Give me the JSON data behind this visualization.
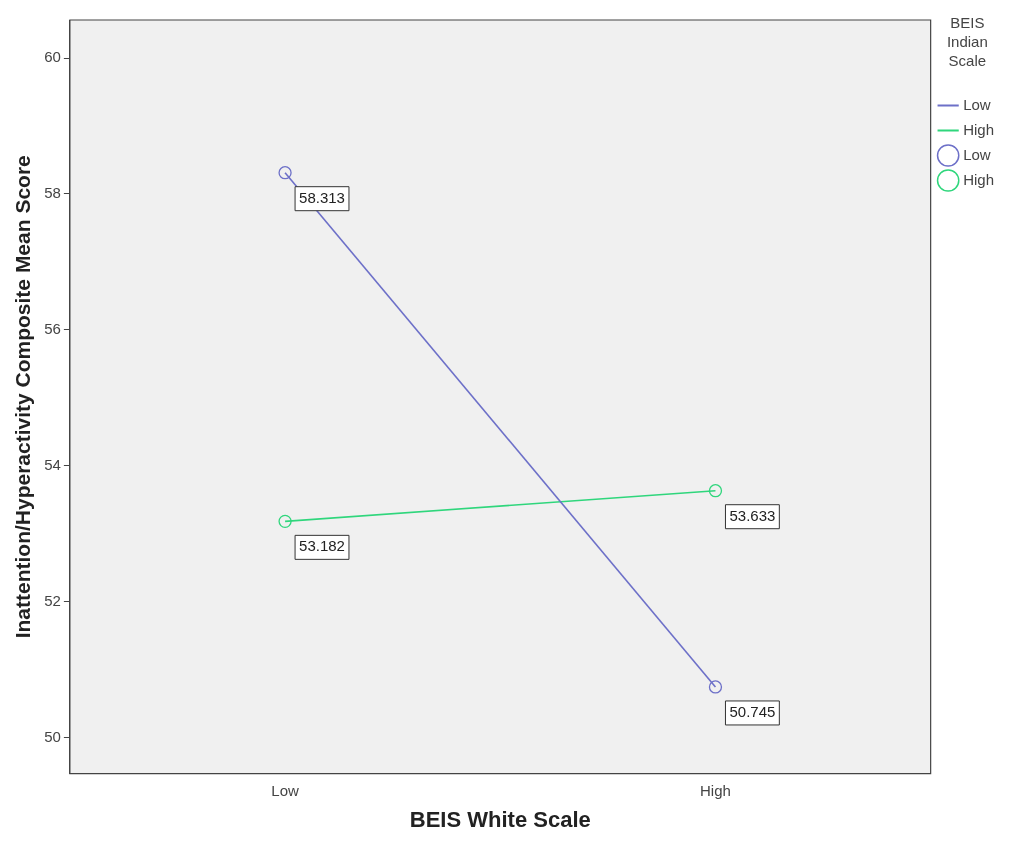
{
  "chart_data": {
    "type": "line",
    "xlabel": "BEIS White Scale",
    "ylabel": "Inattention/Hyperactivity Composite Mean Score",
    "legend_title": "BEIS Indian Scale",
    "categories": [
      "Low",
      "High"
    ],
    "series": [
      {
        "name": "Low",
        "color": "#6d70c8",
        "values": [
          58.313,
          50.745
        ]
      },
      {
        "name": "High",
        "color": "#2fd67c",
        "values": [
          53.182,
          53.633
        ]
      }
    ],
    "ylim": [
      49.47,
      60.56
    ],
    "yticks": [
      50,
      52,
      54,
      56,
      58,
      60
    ],
    "grid": false,
    "legend": "top right",
    "marker": "circle",
    "line_style": "solid",
    "data_labels": true
  }
}
